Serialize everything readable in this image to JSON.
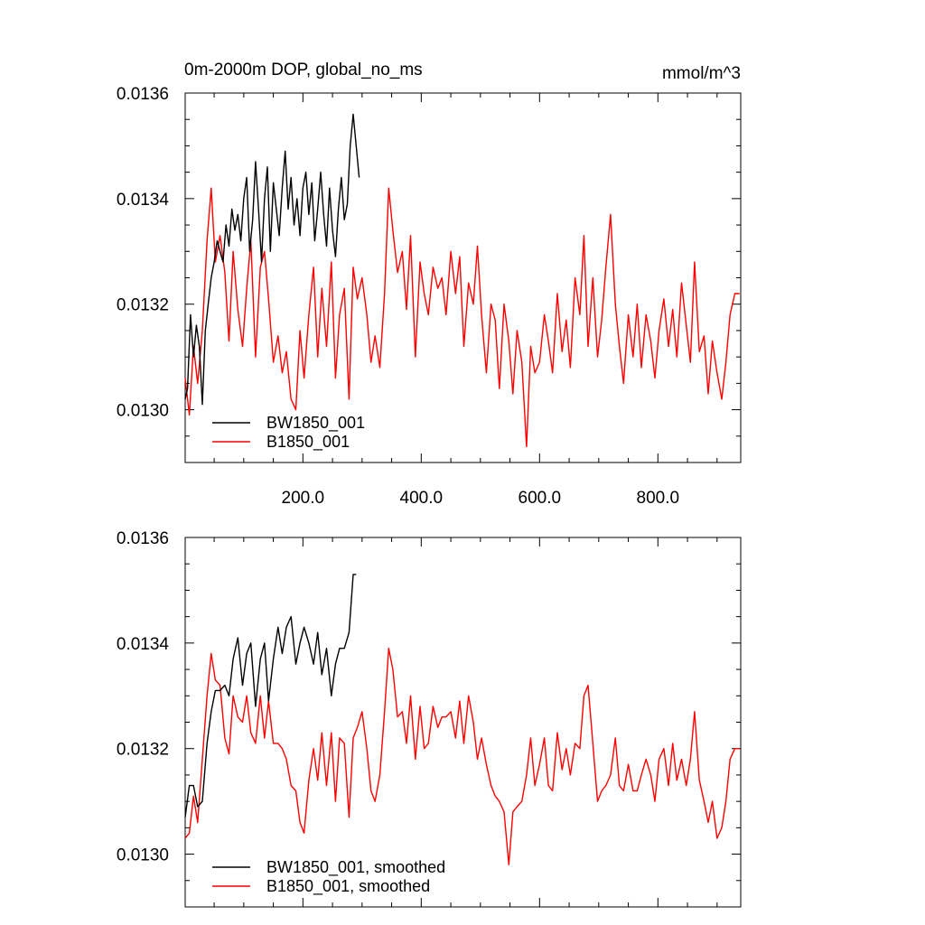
{
  "figure": {
    "title_left": "0m-2000m DOP, global_no_ms",
    "title_right": "mmol/m^3"
  },
  "chart_data": [
    {
      "type": "line",
      "title": "0m-2000m DOP, global_no_ms",
      "units": "mmol/m^3",
      "xlim": [
        1,
        940
      ],
      "ylim": [
        0.0129,
        0.0136
      ],
      "x_ticks": [
        200,
        400,
        600,
        800
      ],
      "x_tick_labels": [
        "200.0",
        "400.0",
        "600.0",
        "800.0"
      ],
      "y_ticks": [
        0.013,
        0.0132,
        0.0134,
        0.0136
      ],
      "y_tick_labels": [
        "0.0130",
        "0.0132",
        "0.0134",
        "0.0136"
      ],
      "legend_position": "bottom-left",
      "series": [
        {
          "name": "BW1850_001",
          "color": "#000000",
          "x": [
            1,
            5,
            10,
            15,
            20,
            25,
            30,
            35,
            40,
            45,
            50,
            55,
            60,
            65,
            70,
            75,
            80,
            85,
            90,
            95,
            100,
            105,
            110,
            115,
            120,
            125,
            130,
            135,
            140,
            145,
            150,
            155,
            160,
            165,
            170,
            175,
            180,
            185,
            190,
            195,
            200,
            205,
            210,
            215,
            220,
            225,
            230,
            235,
            240,
            245,
            250,
            255,
            260,
            265,
            270,
            275,
            280,
            285,
            290,
            295
          ],
          "y": [
            0.01302,
            0.01304,
            0.01318,
            0.0131,
            0.01316,
            0.01312,
            0.01301,
            0.01315,
            0.0132,
            0.01325,
            0.01328,
            0.01332,
            0.0133,
            0.01328,
            0.01335,
            0.01331,
            0.01338,
            0.01334,
            0.01337,
            0.01332,
            0.0134,
            0.01344,
            0.0133,
            0.01336,
            0.01347,
            0.01338,
            0.01328,
            0.0134,
            0.01346,
            0.0133,
            0.01343,
            0.01338,
            0.01333,
            0.01342,
            0.01349,
            0.01338,
            0.01344,
            0.01335,
            0.0134,
            0.01333,
            0.01342,
            0.01345,
            0.01337,
            0.01343,
            0.01332,
            0.01338,
            0.01345,
            0.01337,
            0.01331,
            0.01342,
            0.01334,
            0.01329,
            0.01338,
            0.01344,
            0.01336,
            0.01339,
            0.0135,
            0.01356,
            0.0135,
            0.01344
          ]
        },
        {
          "name": "B1850_001",
          "color": "#ff0000",
          "x": [
            1,
            8,
            15,
            22,
            30,
            38,
            45,
            52,
            60,
            68,
            75,
            82,
            90,
            98,
            105,
            112,
            120,
            128,
            135,
            142,
            150,
            158,
            165,
            172,
            180,
            188,
            195,
            202,
            210,
            218,
            225,
            232,
            240,
            248,
            255,
            262,
            270,
            278,
            285,
            292,
            300,
            308,
            315,
            322,
            330,
            338,
            345,
            352,
            360,
            368,
            375,
            382,
            390,
            398,
            405,
            412,
            420,
            428,
            435,
            442,
            450,
            458,
            465,
            472,
            480,
            488,
            495,
            502,
            510,
            518,
            525,
            532,
            540,
            548,
            555,
            562,
            570,
            578,
            585,
            592,
            600,
            608,
            615,
            622,
            630,
            638,
            645,
            652,
            660,
            668,
            675,
            682,
            690,
            698,
            705,
            712,
            720,
            728,
            735,
            742,
            750,
            758,
            765,
            772,
            780,
            788,
            795,
            802,
            810,
            818,
            825,
            832,
            840,
            848,
            855,
            862,
            870,
            878,
            885,
            892,
            900,
            908,
            915,
            922,
            930,
            938
          ],
          "y": [
            0.01306,
            0.01299,
            0.01312,
            0.01305,
            0.01315,
            0.01332,
            0.01342,
            0.01328,
            0.01333,
            0.01326,
            0.01313,
            0.0133,
            0.01319,
            0.01312,
            0.01323,
            0.01332,
            0.0131,
            0.01327,
            0.0133,
            0.01321,
            0.01309,
            0.01314,
            0.01307,
            0.01311,
            0.01302,
            0.013,
            0.01315,
            0.01306,
            0.01318,
            0.01327,
            0.0131,
            0.01323,
            0.01312,
            0.01328,
            0.01306,
            0.01318,
            0.01323,
            0.01302,
            0.01327,
            0.01321,
            0.01325,
            0.01318,
            0.01309,
            0.01314,
            0.01308,
            0.01322,
            0.01342,
            0.01334,
            0.01326,
            0.0133,
            0.01319,
            0.01333,
            0.0131,
            0.01328,
            0.01322,
            0.01318,
            0.01327,
            0.01323,
            0.01325,
            0.01318,
            0.0133,
            0.01322,
            0.01329,
            0.01312,
            0.01324,
            0.0132,
            0.01331,
            0.01318,
            0.01307,
            0.0132,
            0.01317,
            0.01304,
            0.0132,
            0.01313,
            0.01303,
            0.01315,
            0.01309,
            0.01293,
            0.01312,
            0.01307,
            0.01309,
            0.01318,
            0.01313,
            0.01307,
            0.01322,
            0.01311,
            0.01317,
            0.01308,
            0.01325,
            0.01318,
            0.01333,
            0.01312,
            0.01325,
            0.0131,
            0.01317,
            0.01327,
            0.01337,
            0.0132,
            0.01312,
            0.01305,
            0.01318,
            0.0131,
            0.0132,
            0.01308,
            0.01318,
            0.01313,
            0.01306,
            0.01315,
            0.01321,
            0.01312,
            0.01319,
            0.0131,
            0.01324,
            0.01316,
            0.01309,
            0.01328,
            0.01311,
            0.01314,
            0.01303,
            0.01313,
            0.01307,
            0.01302,
            0.01309,
            0.01318,
            0.01322,
            0.01322
          ]
        }
      ]
    },
    {
      "type": "line",
      "xlim": [
        1,
        940
      ],
      "ylim": [
        0.0129,
        0.0136
      ],
      "y_ticks": [
        0.013,
        0.0132,
        0.0134,
        0.0136
      ],
      "y_tick_labels": [
        "0.0130",
        "0.0132",
        "0.0134",
        "0.0136"
      ],
      "legend_position": "bottom-left",
      "series": [
        {
          "name": "BW1850_001, smoothed",
          "color": "#000000",
          "x": [
            1,
            8,
            15,
            22,
            30,
            38,
            45,
            52,
            60,
            68,
            75,
            82,
            90,
            98,
            105,
            112,
            120,
            128,
            135,
            142,
            150,
            158,
            165,
            172,
            180,
            188,
            195,
            202,
            210,
            218,
            225,
            232,
            240,
            248,
            255,
            262,
            270,
            278,
            285,
            290
          ],
          "y": [
            0.01307,
            0.01313,
            0.01313,
            0.01309,
            0.0131,
            0.01321,
            0.01327,
            0.01331,
            0.01331,
            0.01332,
            0.0133,
            0.01337,
            0.01341,
            0.01332,
            0.01338,
            0.0134,
            0.01328,
            0.01337,
            0.0134,
            0.01329,
            0.01337,
            0.01343,
            0.01338,
            0.01343,
            0.01345,
            0.01336,
            0.0134,
            0.01343,
            0.0134,
            0.01336,
            0.01342,
            0.01334,
            0.01339,
            0.0133,
            0.01336,
            0.01339,
            0.01339,
            0.01342,
            0.01353,
            0.01353
          ]
        },
        {
          "name": "B1850_001, smoothed",
          "color": "#ff0000",
          "x": [
            1,
            8,
            15,
            22,
            30,
            38,
            45,
            52,
            60,
            68,
            75,
            82,
            90,
            98,
            105,
            112,
            120,
            128,
            135,
            142,
            150,
            158,
            165,
            172,
            180,
            188,
            195,
            202,
            210,
            218,
            225,
            232,
            240,
            248,
            255,
            262,
            270,
            278,
            285,
            292,
            300,
            308,
            315,
            322,
            330,
            338,
            345,
            352,
            360,
            368,
            375,
            382,
            390,
            398,
            405,
            412,
            420,
            428,
            435,
            442,
            450,
            458,
            465,
            472,
            480,
            488,
            495,
            502,
            510,
            518,
            525,
            532,
            540,
            548,
            555,
            562,
            570,
            578,
            585,
            592,
            600,
            608,
            615,
            622,
            630,
            638,
            645,
            652,
            660,
            668,
            675,
            682,
            690,
            698,
            705,
            712,
            720,
            728,
            735,
            742,
            750,
            758,
            765,
            772,
            780,
            788,
            795,
            802,
            810,
            818,
            825,
            832,
            840,
            848,
            855,
            862,
            870,
            878,
            885,
            892,
            900,
            908,
            915,
            922,
            930,
            938
          ],
          "y": [
            0.01303,
            0.01304,
            0.01311,
            0.01306,
            0.01318,
            0.0133,
            0.01338,
            0.01333,
            0.01332,
            0.01322,
            0.01319,
            0.0133,
            0.01326,
            0.01325,
            0.0133,
            0.01323,
            0.01321,
            0.0133,
            0.01322,
            0.01329,
            0.01321,
            0.01321,
            0.0132,
            0.01318,
            0.01313,
            0.01312,
            0.01306,
            0.01304,
            0.01314,
            0.0132,
            0.01314,
            0.01323,
            0.01313,
            0.01323,
            0.0131,
            0.01322,
            0.01321,
            0.01307,
            0.01322,
            0.01324,
            0.01327,
            0.0132,
            0.01312,
            0.0131,
            0.01315,
            0.01327,
            0.01339,
            0.01335,
            0.01326,
            0.01327,
            0.01321,
            0.0133,
            0.01318,
            0.01328,
            0.0132,
            0.01321,
            0.01328,
            0.01324,
            0.01326,
            0.01326,
            0.01327,
            0.01322,
            0.01329,
            0.01321,
            0.0133,
            0.01325,
            0.01318,
            0.01322,
            0.01317,
            0.01313,
            0.01311,
            0.0131,
            0.01308,
            0.01298,
            0.01308,
            0.01309,
            0.0131,
            0.01315,
            0.01322,
            0.01313,
            0.01317,
            0.01322,
            0.01313,
            0.01312,
            0.01323,
            0.01316,
            0.0132,
            0.01315,
            0.01321,
            0.0132,
            0.0133,
            0.01332,
            0.01321,
            0.0131,
            0.01312,
            0.01313,
            0.01315,
            0.01322,
            0.01313,
            0.01312,
            0.01317,
            0.01312,
            0.01312,
            0.01315,
            0.01318,
            0.01315,
            0.0131,
            0.01318,
            0.0132,
            0.01313,
            0.01321,
            0.01314,
            0.01318,
            0.01313,
            0.01318,
            0.01327,
            0.01314,
            0.0131,
            0.01306,
            0.0131,
            0.01303,
            0.01305,
            0.0131,
            0.01318,
            0.0132,
            0.0132
          ]
        }
      ]
    }
  ]
}
